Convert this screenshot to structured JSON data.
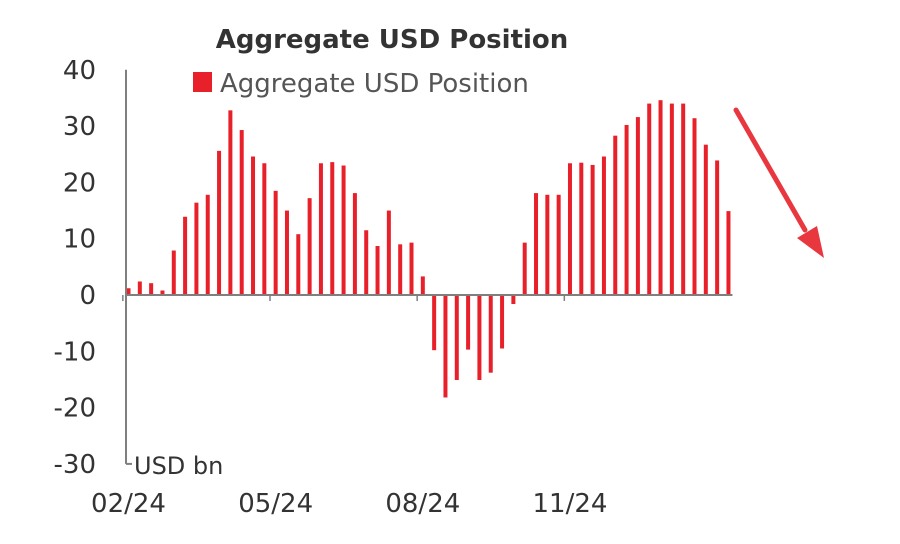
{
  "chart_data": {
    "type": "bar",
    "title": "Aggregate USD Position",
    "legend": {
      "label": "Aggregate USD Position",
      "position": "top"
    },
    "unit_label": "USD bn",
    "xlabel": "",
    "ylabel": "",
    "ylim": [
      -30,
      40
    ],
    "y_ticks": [
      40,
      30,
      20,
      10,
      0,
      -10,
      -20,
      -30
    ],
    "x_tick_labels": [
      {
        "label": "02/24",
        "index": 0
      },
      {
        "label": "05/24",
        "index": 13
      },
      {
        "label": "08/24",
        "index": 26
      },
      {
        "label": "11/24",
        "index": 39
      }
    ],
    "grid": false,
    "series": [
      {
        "name": "Aggregate USD Position",
        "color": "#e8202a",
        "values": [
          1.2,
          2.4,
          2.1,
          0.8,
          7.9,
          13.9,
          16.4,
          17.8,
          25.6,
          32.8,
          29.3,
          24.6,
          23.4,
          18.5,
          15.0,
          10.8,
          17.2,
          23.4,
          23.6,
          23.0,
          18.1,
          11.5,
          8.7,
          15.0,
          9.0,
          9.3,
          3.3,
          -9.8,
          -18.2,
          -15.1,
          -9.7,
          -15.1,
          -13.8,
          -9.5,
          -1.6,
          9.3,
          18.1,
          17.8,
          17.8,
          23.4,
          23.5,
          23.1,
          24.6,
          28.3,
          30.2,
          31.6,
          34.0,
          34.6,
          34.0,
          34.0,
          31.4,
          26.7,
          23.9,
          14.9
        ]
      }
    ],
    "annotation": {
      "type": "arrow",
      "direction": "down-right",
      "color": "#e8373f"
    }
  }
}
